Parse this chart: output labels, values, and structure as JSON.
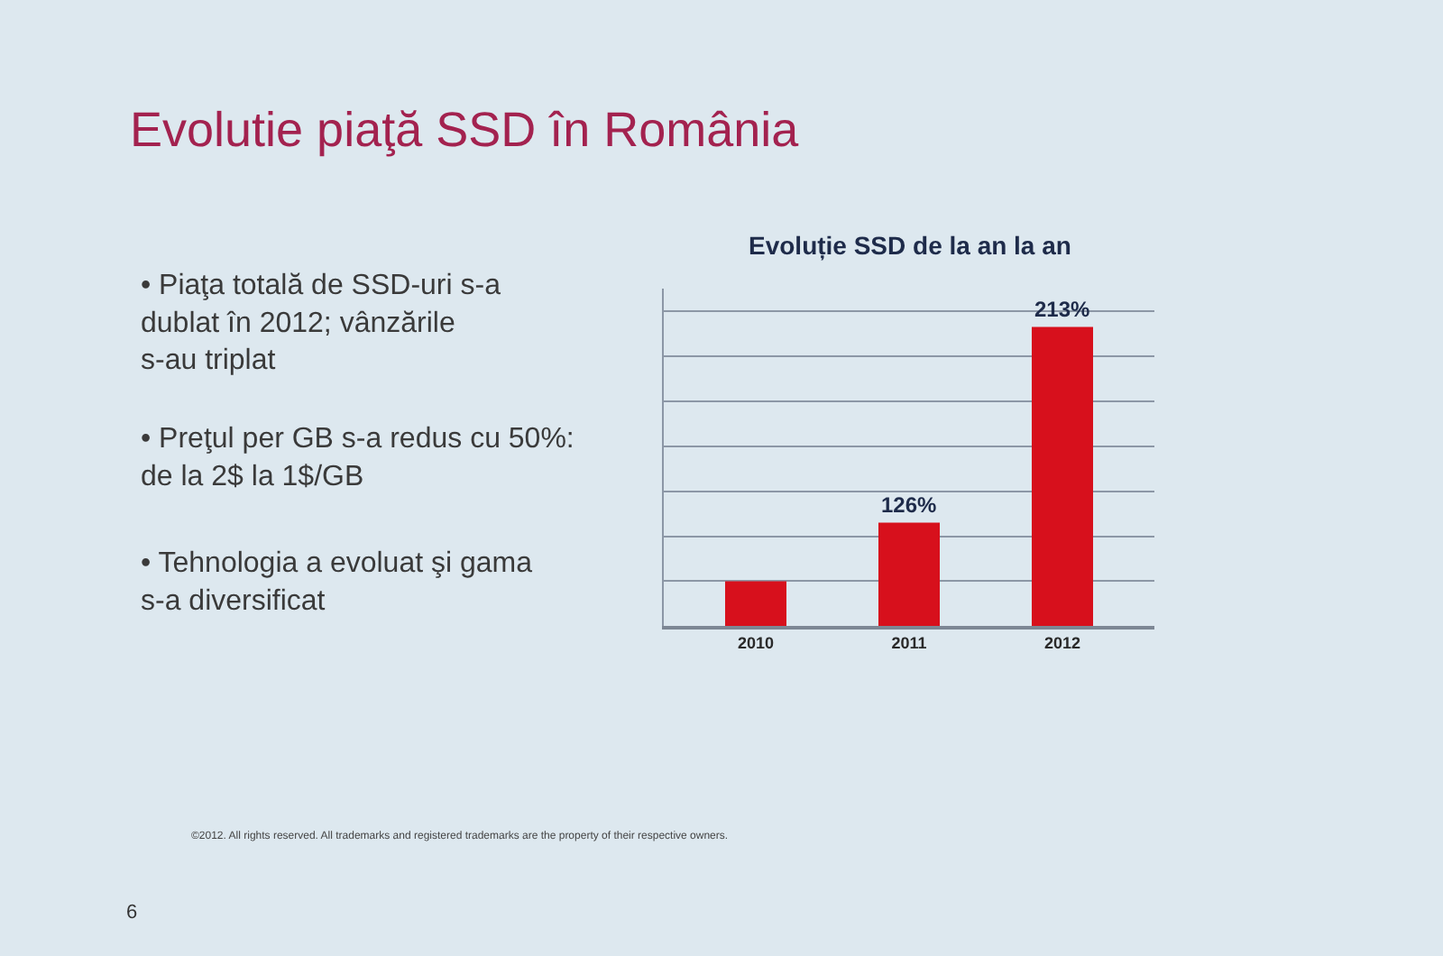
{
  "chart_data": {
    "type": "bar",
    "title": "Evolutie piaţă SSD în România",
    "subtitle": "Evoluție SSD de la an la an",
    "categories": [
      "2010",
      "2011",
      "2012"
    ],
    "values": [
      100,
      126,
      213
    ],
    "value_labels": [
      null,
      "126%",
      "213%"
    ],
    "color": "#d7101c",
    "ylim": [
      80,
      230
    ],
    "grid": "y",
    "tick_labels": "x",
    "annotations": [
      "• Piaţa totală de SSD-uri s-a\ndublat în 2012; vânzările\ns-au triplat",
      "• Preţul per GB s-a redus cu 50%:\nde la 2$ la 1$/GB",
      "• Tehnologia a evoluat şi gama\ns-a diversificat",
      "©2012. All rights reserved. All trademarks and registered trademarks are the property of their respective owners.",
      "6"
    ]
  }
}
